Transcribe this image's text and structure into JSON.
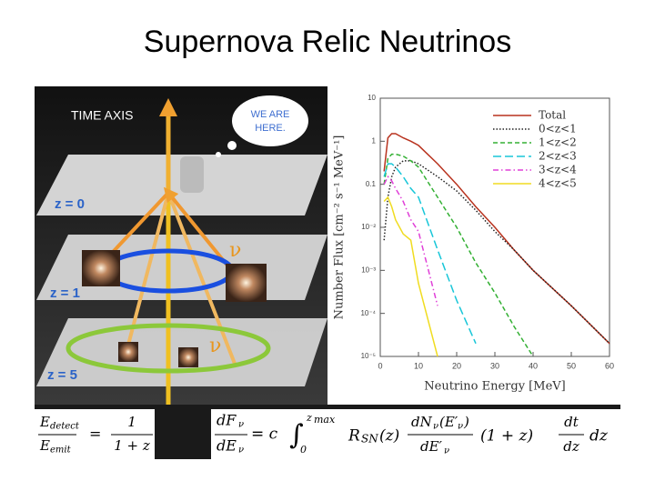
{
  "title": "Supernova Relic Neutrinos",
  "diagram": {
    "time_axis": "TIME AXIS",
    "bubble": [
      "WE ARE",
      "HERE."
    ],
    "planes": [
      "z = 0",
      "z = 1",
      "z = 5"
    ],
    "nu": "ν"
  },
  "formulas": {
    "redshift": [
      "E",
      "detect",
      "E",
      "emit",
      "=",
      "1",
      "1 + z"
    ],
    "flux": [
      "dF",
      "ν",
      "dE",
      "ν",
      "= c",
      "∫",
      "0",
      "z",
      "max",
      "R",
      "SN",
      "(z)",
      "dN",
      "ν",
      "(E′",
      "ν",
      ")",
      "dE′",
      "ν",
      "(1 + z)",
      "dt",
      "dz",
      "dz"
    ]
  },
  "chart_data": {
    "type": "line",
    "log_y": true,
    "xlabel": "Neutrino Energy [MeV]",
    "ylabel": "Number Flux [cm⁻² s⁻¹ MeV⁻¹]",
    "x": [
      1,
      2,
      3,
      4,
      6,
      8,
      10,
      15,
      20,
      25,
      30,
      35,
      40,
      50,
      60
    ],
    "xlim": [
      0,
      60
    ],
    "xticks": [
      0,
      10,
      20,
      30,
      40,
      50,
      60
    ],
    "ylim": [
      1e-05,
      10
    ],
    "yticks": [
      10,
      1,
      0.1,
      {
        "value": 0.01,
        "label": "10⁻²"
      },
      {
        "value": 0.001,
        "label": "10⁻³"
      },
      {
        "value": 0.0001,
        "label": "10⁻⁴"
      },
      {
        "value": 1e-05,
        "label": "10⁻⁵"
      }
    ],
    "legend": "upper right",
    "series": [
      {
        "name": "Total",
        "color": "#b8321e",
        "dash": "solid",
        "values": [
          0.2,
          1.2,
          1.5,
          1.5,
          1.2,
          1.0,
          0.8,
          0.3,
          0.1,
          0.03,
          0.01,
          0.003,
          0.001,
          0.00015,
          2e-05
        ]
      },
      {
        "name": "0<z<1",
        "color": "#222222",
        "dash": "dotted",
        "values": [
          0.005,
          0.05,
          0.15,
          0.25,
          0.35,
          0.35,
          0.3,
          0.15,
          0.07,
          0.025,
          0.008,
          0.003,
          0.001,
          0.00015,
          2e-05
        ]
      },
      {
        "name": "1<z<2",
        "color": "#33b033",
        "dash": "dashed",
        "values": [
          0.1,
          0.4,
          0.5,
          0.5,
          0.45,
          0.35,
          0.25,
          0.05,
          0.01,
          0.0015,
          0.0003,
          5e-05,
          1e-05,
          null,
          null
        ]
      },
      {
        "name": "2<z<3",
        "color": "#18c6d8",
        "dash": "longdash",
        "values": [
          0.15,
          0.3,
          0.3,
          0.25,
          0.15,
          0.08,
          0.05,
          0.003,
          0.0002,
          2e-05,
          null,
          null,
          null,
          null,
          null
        ]
      },
      {
        "name": "3<z<4",
        "color": "#e040d8",
        "dash": "dashdot",
        "values": [
          0.1,
          0.15,
          0.12,
          0.08,
          0.04,
          0.015,
          0.008,
          0.00015,
          null,
          null,
          null,
          null,
          null,
          null,
          null
        ]
      },
      {
        "name": "4<z<5",
        "color": "#f0dc20",
        "dash": "solid",
        "values": [
          0.04,
          0.05,
          0.03,
          0.015,
          0.007,
          0.005,
          0.0005,
          1e-05,
          null,
          null,
          null,
          null,
          null,
          null,
          null
        ]
      }
    ]
  }
}
